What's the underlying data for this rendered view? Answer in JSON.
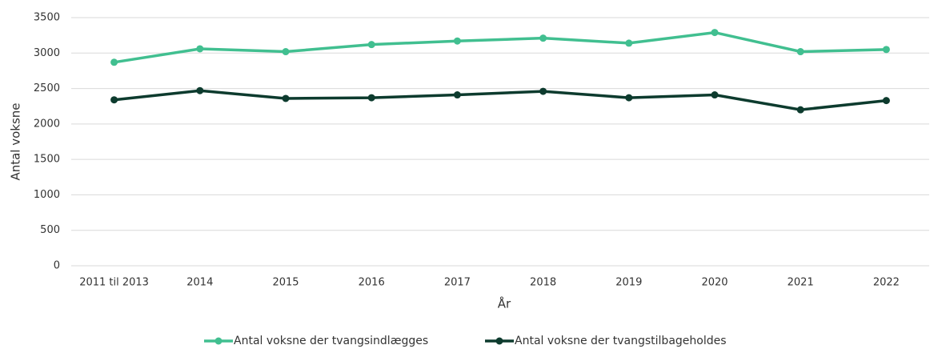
{
  "chart_data": {
    "type": "line",
    "x_label": "År",
    "y_label": "Antal voksne",
    "categories": [
      "2011 til 2013",
      "2014",
      "2015",
      "2016",
      "2017",
      "2018",
      "2019",
      "2020",
      "2021",
      "2022"
    ],
    "series": [
      {
        "name": "Antal voksne der tvangsindlægges",
        "color": "#41bf90",
        "values": [
          2870,
          3060,
          3020,
          3120,
          3170,
          3210,
          3140,
          3290,
          3020,
          3050
        ]
      },
      {
        "name": "Antal voksne der tvangstilbageholdes",
        "color": "#0d3b2e",
        "values": [
          2340,
          2470,
          2360,
          2370,
          2410,
          2460,
          2370,
          2410,
          2200,
          2330
        ]
      }
    ],
    "ylim": [
      0,
      3500
    ],
    "yticks": [
      0,
      500,
      1000,
      1500,
      2000,
      2500,
      3000,
      3500
    ],
    "grid": true,
    "legend": "bottom"
  }
}
